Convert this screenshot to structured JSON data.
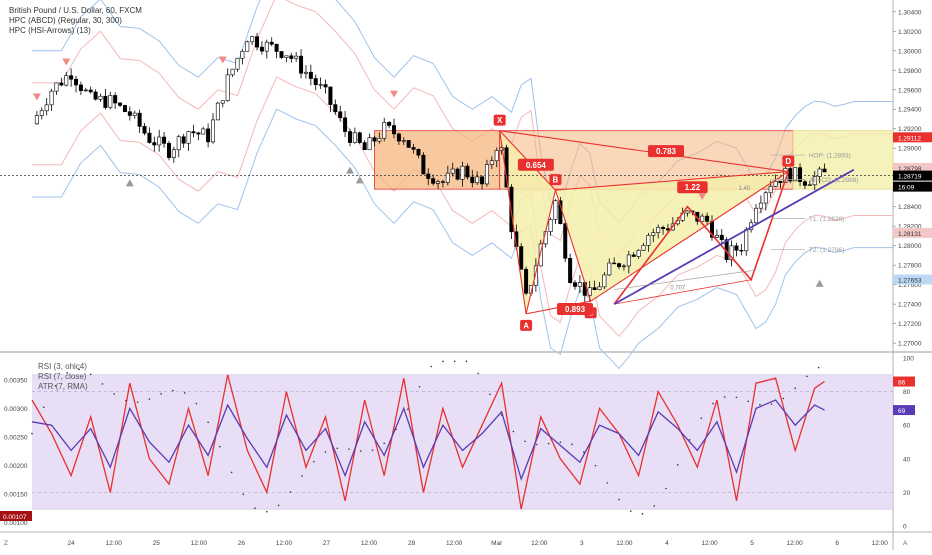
{
  "legend": {
    "title": "British Pound / U.S. Dollar, 60, FXCM",
    "line2": "HPC (ABCD) (Regular, 30, 300)",
    "line3": "HPC (HSI-Arrows) (13)"
  },
  "indicator_legend": {
    "line1": "RSI (3, ohlc4)",
    "line2": "RSI (7, close)",
    "line3": "ATR (7, RMA)"
  },
  "colors": {
    "up": "#ffffff",
    "down": "#000000",
    "red": "#e8312f",
    "purple": "#5b3bb5",
    "orange_zone": "#f6b77f",
    "yellow_zone": "#f4efaa",
    "lavender": "#e2d6f3",
    "blue_band": "#9fc3ec",
    "pink_band": "#f3b8b8"
  },
  "xaxis": {
    "labels": [
      "24",
      "12:00",
      "25",
      "12:00",
      "26",
      "12:00",
      "27",
      "12:00",
      "28",
      "12:00",
      "Mar",
      "12:00",
      "3",
      "12:00",
      "4",
      "12:00",
      "5",
      "12:00",
      "6",
      "12:00"
    ]
  },
  "price_axis": {
    "ticks": [
      "1.30400",
      "1.30200",
      "1.30000",
      "1.29800",
      "1.29600",
      "1.29400",
      "1.29200",
      "1.29000",
      "1.28800",
      "1.28600",
      "1.28400",
      "1.28200",
      "1.28000",
      "1.27800",
      "1.27600",
      "1.27400",
      "1.27200",
      "1.27000"
    ],
    "tags": [
      {
        "value": 1.29112,
        "text": "1.29112",
        "color": "#e8312f"
      },
      {
        "value": 1.28798,
        "text": "1.28798",
        "color": "#f4c7c7"
      },
      {
        "value": 1.28719,
        "text": "1.28719",
        "color": "#000000"
      },
      {
        "value": 1.28131,
        "text": "1.28131",
        "color": "#f4c7c7"
      },
      {
        "value": 1.27653,
        "text": "1.27653",
        "color": "#bcd8f5"
      }
    ],
    "countdown": "16:09"
  },
  "atr_axis": {
    "ticks": [
      "0.00350",
      "0.00300",
      "0.00250",
      "0.00200",
      "0.00150",
      "0.00100"
    ],
    "tag": "0.00107"
  },
  "rsi_axis": {
    "ticks": [
      "100",
      "80",
      "60",
      "40",
      "20",
      "0"
    ],
    "tags": [
      {
        "value": 86,
        "text": "86",
        "color": "#e8312f"
      },
      {
        "value": 69,
        "text": "69",
        "color": "#5b3bb5"
      }
    ]
  },
  "pattern": {
    "points": [
      {
        "label": "X",
        "x": 47.8,
        "y": 1.2918
      },
      {
        "label": "A",
        "x": 50.5,
        "y": 1.273
      },
      {
        "label": "B",
        "x": 53.5,
        "y": 1.2857
      },
      {
        "label": "C",
        "x": 57.1,
        "y": 1.2743
      },
      {
        "label": "D",
        "x": 77.3,
        "y": 1.2876
      }
    ],
    "ratios": [
      {
        "text": "0.654",
        "x": 51.5,
        "y": 1.2883
      },
      {
        "text": "0.783",
        "x": 64.8,
        "y": 1.2897
      },
      {
        "text": "1.22",
        "x": 67.5,
        "y": 1.286
      },
      {
        "text": "0.893",
        "x": 55.5,
        "y": 1.2735
      }
    ],
    "small_labels": [
      {
        "text": "1.40",
        "x": 72.8,
        "y": 1.2857
      },
      {
        "text": "0.707",
        "x": 66.0,
        "y": 1.2755
      }
    ]
  },
  "targets": [
    {
      "text": "HOP: (1.2893)",
      "value": 1.2893
    },
    {
      "text": "AB=CD: (1.2868)",
      "value": 1.2868
    },
    {
      "text": "T1: (1.2828)",
      "value": 1.2828
    },
    {
      "text": "T2: (1.2796)",
      "value": 1.2796
    }
  ],
  "chart_data": {
    "type": "line",
    "title": "British Pound / U.S. Dollar, 60, FXCM",
    "x_range": [
      0,
      88
    ],
    "ylim": [
      1.2695,
      1.3048
    ],
    "grid": true,
    "series": [
      {
        "name": "British Pound / U.S. Dollar",
        "x": [
          0,
          2,
          4,
          6,
          8,
          10,
          12,
          14,
          16,
          18,
          20,
          22,
          24,
          26,
          28,
          30,
          32,
          34,
          36,
          38,
          40,
          42,
          44,
          46,
          47.8,
          49,
          50.5,
          52,
          53.5,
          55,
          57.1,
          59,
          61,
          63,
          65,
          67,
          69,
          71,
          72.5,
          74,
          75.5,
          77.3,
          79,
          80,
          81
        ],
        "values": [
          1.2925,
          1.296,
          1.2978,
          1.295,
          1.2948,
          1.2935,
          1.291,
          1.2898,
          1.2918,
          1.2912,
          1.297,
          1.3015,
          1.3005,
          1.2998,
          1.2978,
          1.2955,
          1.2918,
          1.2898,
          1.292,
          1.2912,
          1.2878,
          1.2865,
          1.2878,
          1.2862,
          1.2912,
          1.282,
          1.2745,
          1.28,
          1.2845,
          1.277,
          1.2748,
          1.2775,
          1.279,
          1.2812,
          1.282,
          1.2832,
          1.2825,
          1.279,
          1.28,
          1.2845,
          1.2865,
          1.2875,
          1.2868,
          1.287,
          1.2873
        ]
      },
      {
        "name": "RSI (7, close)",
        "x": [
          0,
          2,
          4,
          6,
          8,
          10,
          12,
          14,
          16,
          18,
          20,
          22,
          24,
          26,
          28,
          30,
          32,
          34,
          36,
          38,
          40,
          42,
          44,
          46,
          48,
          50,
          52,
          54,
          56,
          58,
          60,
          62,
          64,
          66,
          68,
          70,
          72,
          74,
          76,
          78,
          80,
          81
        ],
        "values": [
          75,
          55,
          30,
          65,
          20,
          85,
          40,
          25,
          70,
          30,
          90,
          45,
          20,
          80,
          35,
          65,
          15,
          75,
          30,
          88,
          20,
          70,
          35,
          60,
          85,
          10,
          65,
          40,
          25,
          70,
          55,
          30,
          80,
          60,
          35,
          75,
          15,
          85,
          88,
          45,
          82,
          86
        ]
      },
      {
        "name": "RSI (3, ohlc4)",
        "x": [
          0,
          2,
          4,
          6,
          8,
          10,
          12,
          14,
          16,
          18,
          20,
          22,
          24,
          26,
          28,
          30,
          32,
          34,
          36,
          38,
          40,
          42,
          44,
          46,
          48,
          50,
          52,
          54,
          56,
          58,
          60,
          62,
          64,
          66,
          68,
          70,
          72,
          74,
          76,
          78,
          80,
          81
        ],
        "values": [
          62,
          60,
          45,
          58,
          35,
          70,
          50,
          38,
          60,
          42,
          72,
          52,
          35,
          66,
          45,
          58,
          30,
          62,
          42,
          70,
          35,
          60,
          45,
          55,
          68,
          28,
          58,
          48,
          38,
          60,
          55,
          42,
          68,
          58,
          45,
          62,
          32,
          70,
          75,
          60,
          72,
          69
        ]
      }
    ]
  }
}
